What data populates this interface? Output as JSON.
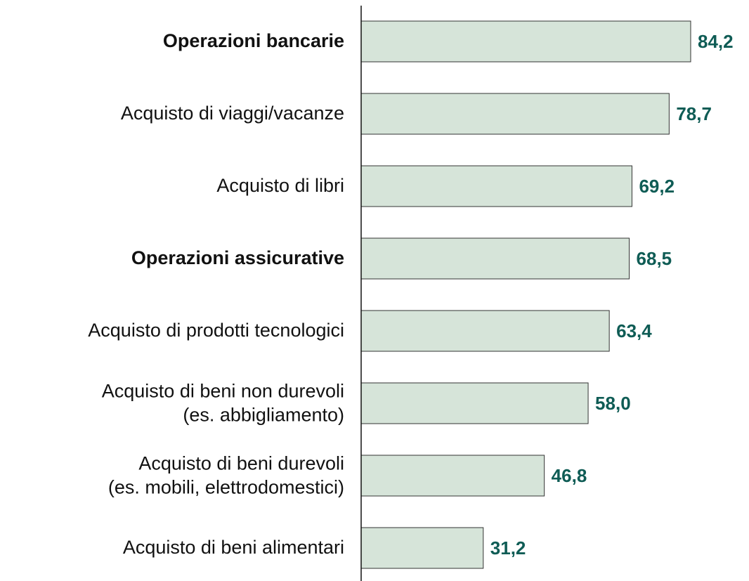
{
  "chart_data": {
    "type": "barh",
    "categories": [
      "Operazioni bancarie",
      "Acquisto di viaggi/vacanze",
      "Acquisto di libri",
      "Operazioni assicurative",
      "Acquisto di prodotti tecnologici",
      "Acquisto di beni non durevoli\n(es. abbigliamento)",
      "Acquisto di beni durevoli\n(es. mobili, elettrodomestici)",
      "Acquisto di beni alimentari"
    ],
    "values": [
      84.2,
      78.7,
      69.2,
      68.5,
      63.4,
      58.0,
      46.8,
      31.2
    ],
    "value_labels": [
      "84,2",
      "78,7",
      "69,2",
      "68,5",
      "63,4",
      "58,0",
      "46,8",
      "31,2"
    ],
    "bold_categories": [
      true,
      false,
      false,
      true,
      false,
      false,
      false,
      false
    ],
    "color": "#d6e4d9",
    "value_label_color": "#0f5c55",
    "xlim": [
      0,
      100
    ]
  }
}
